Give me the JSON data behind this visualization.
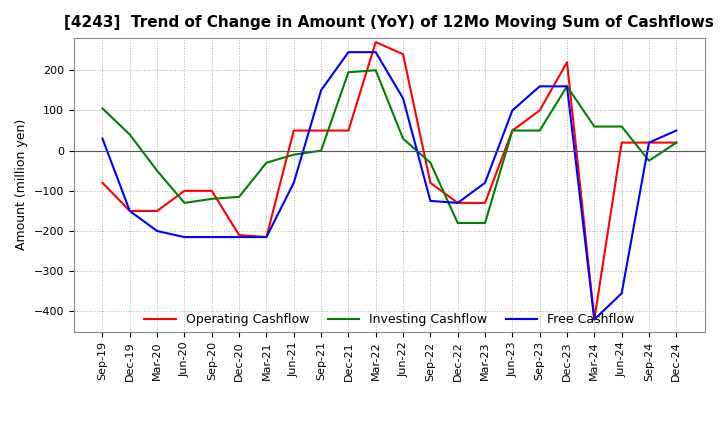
{
  "title": "[4243]  Trend of Change in Amount (YoY) of 12Mo Moving Sum of Cashflows",
  "ylabel": "Amount (million yen)",
  "ylim": [
    -450,
    280
  ],
  "yticks": [
    -400,
    -300,
    -200,
    -100,
    0,
    100,
    200
  ],
  "x_labels": [
    "Sep-19",
    "Dec-19",
    "Mar-20",
    "Jun-20",
    "Sep-20",
    "Dec-20",
    "Mar-21",
    "Jun-21",
    "Sep-21",
    "Dec-21",
    "Mar-22",
    "Jun-22",
    "Sep-22",
    "Dec-22",
    "Mar-23",
    "Jun-23",
    "Sep-23",
    "Dec-23",
    "Mar-24",
    "Jun-24",
    "Sep-24",
    "Dec-24"
  ],
  "operating": [
    -80,
    -150,
    -150,
    -100,
    -100,
    -210,
    -215,
    50,
    50,
    50,
    270,
    240,
    -80,
    -130,
    -130,
    50,
    100,
    220,
    -420,
    20,
    20,
    20
  ],
  "investing": [
    105,
    40,
    -50,
    -130,
    -120,
    -115,
    -30,
    -10,
    0,
    195,
    200,
    30,
    -30,
    -180,
    -180,
    50,
    50,
    160,
    60,
    60,
    -25,
    20
  ],
  "free": [
    30,
    -150,
    -200,
    -215,
    -215,
    -215,
    -215,
    -80,
    150,
    245,
    245,
    130,
    -125,
    -130,
    -80,
    100,
    160,
    160,
    -420,
    -355,
    20,
    50
  ],
  "operating_color": "#ff0000",
  "investing_color": "#008000",
  "free_color": "#0000ff",
  "background_color": "#ffffff",
  "grid_color": "#b0b0b0",
  "title_fontsize": 11,
  "axis_fontsize": 9,
  "tick_fontsize": 8,
  "legend_fontsize": 9
}
